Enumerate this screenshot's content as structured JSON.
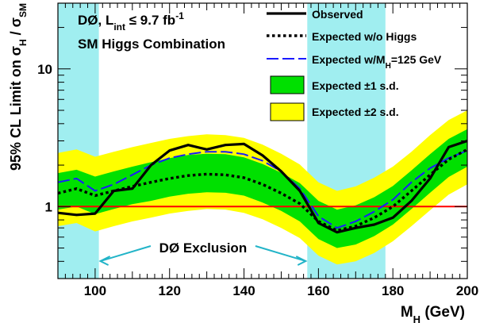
{
  "chart_data": {
    "type": "line",
    "title_lines": [
      {
        "prefix": "DØ, L",
        "sub": "int",
        "suffix": " ≤ 9.7 fb",
        "sup": "-1"
      },
      {
        "text": "SM Higgs Combination"
      }
    ],
    "xlabel": {
      "main": "M",
      "sub": "H",
      "rest": " (GeV)"
    },
    "ylabel": {
      "text": "95% CL Limit on σ",
      "sub1": "H",
      "mid": " / σ",
      "sub2": "SM"
    },
    "x_range": [
      90,
      200
    ],
    "y_range": [
      0.3,
      30
    ],
    "y_scale": "log",
    "x_ticks": [
      {
        "v": 100,
        "label": "100"
      },
      {
        "v": 120,
        "label": "120"
      },
      {
        "v": 140,
        "label": "140"
      },
      {
        "v": 160,
        "label": "160"
      },
      {
        "v": 180,
        "label": "180"
      },
      {
        "v": 200,
        "label": "200"
      }
    ],
    "y_ticks": [
      {
        "v": 1,
        "label": "1"
      },
      {
        "v": 10,
        "label": "10"
      }
    ],
    "exclusion_bands": [
      [
        90,
        101
      ],
      [
        157,
        178
      ]
    ],
    "exclusion_label": "DØ Exclusion",
    "exclusion_arrow": [
      101,
      157
    ],
    "reference_line": 1,
    "x": [
      90,
      95,
      100,
      105,
      110,
      115,
      120,
      125,
      130,
      135,
      140,
      145,
      150,
      155,
      160,
      165,
      170,
      175,
      180,
      185,
      190,
      195,
      200
    ],
    "observed": [
      0.9,
      0.87,
      0.89,
      1.3,
      1.35,
      2.0,
      2.55,
      2.8,
      2.6,
      2.8,
      2.85,
      2.35,
      1.8,
      1.3,
      0.76,
      0.65,
      0.7,
      0.74,
      0.83,
      1.1,
      1.6,
      2.7,
      3.0
    ],
    "expected_bkg": [
      1.25,
      1.35,
      1.2,
      1.3,
      1.4,
      1.5,
      1.6,
      1.68,
      1.72,
      1.7,
      1.62,
      1.45,
      1.25,
      1.05,
      0.78,
      0.67,
      0.72,
      0.83,
      1.0,
      1.3,
      1.7,
      2.2,
      2.6
    ],
    "expected_125": [
      1.5,
      1.6,
      1.3,
      1.45,
      1.7,
      2.0,
      2.25,
      2.4,
      2.5,
      2.5,
      2.4,
      2.15,
      1.8,
      1.35,
      0.85,
      0.7,
      0.78,
      0.92,
      1.12,
      1.5,
      1.9,
      2.25,
      2.55
    ],
    "band1_lo": [
      0.95,
      1.0,
      0.88,
      0.96,
      1.04,
      1.1,
      1.18,
      1.24,
      1.27,
      1.26,
      1.2,
      1.07,
      0.93,
      0.78,
      0.58,
      0.5,
      0.53,
      0.61,
      0.74,
      0.96,
      1.26,
      1.64,
      1.95
    ],
    "band1_hi": [
      1.75,
      1.85,
      1.65,
      1.8,
      1.95,
      2.1,
      2.25,
      2.37,
      2.42,
      2.4,
      2.28,
      2.04,
      1.76,
      1.48,
      1.1,
      0.95,
      1.02,
      1.17,
      1.41,
      1.83,
      2.4,
      3.1,
      3.65
    ],
    "band2_lo": [
      0.72,
      0.76,
      0.66,
      0.72,
      0.78,
      0.83,
      0.89,
      0.93,
      0.96,
      0.95,
      0.9,
      0.81,
      0.7,
      0.59,
      0.44,
      0.38,
      0.4,
      0.46,
      0.56,
      0.72,
      0.94,
      1.22,
      1.45
    ],
    "band2_hi": [
      2.45,
      2.6,
      2.3,
      2.5,
      2.7,
      2.9,
      3.1,
      3.25,
      3.35,
      3.3,
      3.15,
      2.82,
      2.42,
      2.02,
      1.5,
      1.3,
      1.4,
      1.62,
      1.95,
      2.5,
      3.3,
      4.25,
      5.0
    ],
    "legend": [
      {
        "key": "observed",
        "label": "Observed",
        "style": "solid"
      },
      {
        "key": "expected_bkg",
        "label": "Expected w/o Higgs",
        "style": "dotted"
      },
      {
        "key": "expected_125",
        "label": "Expected w/M",
        "sub": "H",
        "rest": "=125 GeV",
        "style": "dashed"
      },
      {
        "key": "band1",
        "label": "Expected ±1 s.d.",
        "style": "fill"
      },
      {
        "key": "band2",
        "label": "Expected ±2 s.d.",
        "style": "fill"
      }
    ],
    "colors": {
      "observed": "#000000",
      "expected_bkg": "#000000",
      "expected_125": "#1a1aff",
      "band1": "#00e000",
      "band2": "#ffff00",
      "exclusion": "#a0eef0",
      "reference": "#ff0000",
      "annotation": "#22b4c8"
    }
  }
}
